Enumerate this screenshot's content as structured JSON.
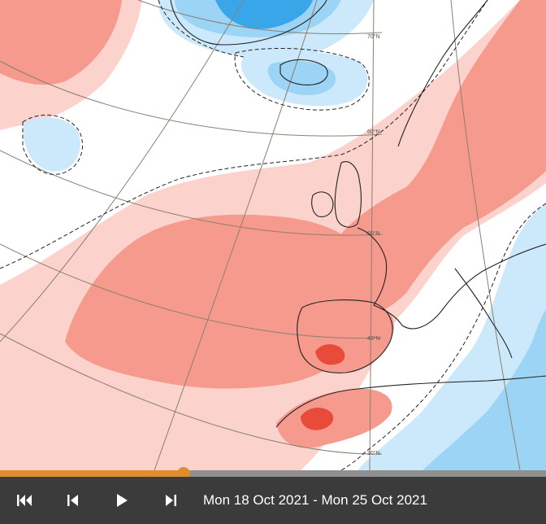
{
  "map": {
    "lat_labels": [
      "70°N",
      "60°N",
      "50°N",
      "40°N",
      "30°N"
    ],
    "colors": {
      "ocean_base": "#ffffff",
      "warm_light": "#fbd2cc",
      "warm_mid": "#f59a8c",
      "warm_strong": "#e84b3a",
      "cold_light": "#cbe9fb",
      "cold_mid": "#9bd4f5",
      "cold_strong": "#3aa6ea",
      "coast": "#222222",
      "graticule": "#8a8070"
    }
  },
  "timeline": {
    "progress": 0.336
  },
  "controls": {
    "buttons": [
      "skip-to-start",
      "step-back",
      "play",
      "skip-to-end"
    ],
    "date_range": "Mon 18 Oct 2021 - Mon 25 Oct 2021"
  }
}
